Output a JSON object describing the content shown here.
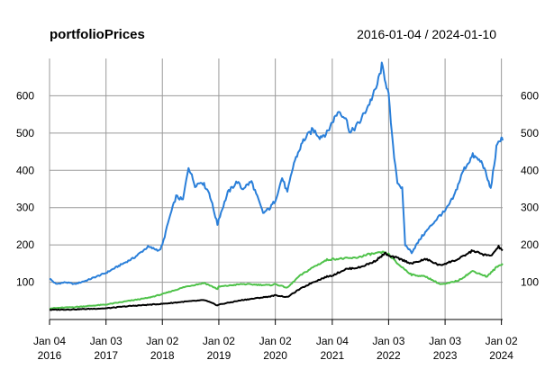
{
  "chart_data": {
    "type": "line",
    "title": "portfolioPrices",
    "date_range": "2016-01-04 / 2024-01-10",
    "x_start": "2016-01-04",
    "x_end": "2024-01-10",
    "ylim": [
      0,
      700
    ],
    "y_ticks": [
      100,
      200,
      300,
      400,
      500,
      600
    ],
    "x_ticks": [
      {
        "date": "2016-01-04",
        "label": [
          "Jan 04",
          "2016"
        ]
      },
      {
        "date": "2017-01-03",
        "label": [
          "Jan 03",
          "2017"
        ]
      },
      {
        "date": "2018-01-02",
        "label": [
          "Jan 02",
          "2018"
        ]
      },
      {
        "date": "2019-01-02",
        "label": [
          "Jan 02",
          "2019"
        ]
      },
      {
        "date": "2020-01-02",
        "label": [
          "Jan 02",
          "2020"
        ]
      },
      {
        "date": "2021-01-04",
        "label": [
          "Jan 04",
          "2021"
        ]
      },
      {
        "date": "2022-01-03",
        "label": [
          "Jan 03",
          "2022"
        ]
      },
      {
        "date": "2023-01-03",
        "label": [
          "Jan 03",
          "2023"
        ]
      },
      {
        "date": "2024-01-02",
        "label": [
          "Jan 02",
          "2024"
        ]
      }
    ],
    "grid": true,
    "series": [
      {
        "color": "#2a7fd9",
        "points": [
          [
            "2016-01-04",
            110
          ],
          [
            "2016-02-15",
            95
          ],
          [
            "2016-04-15",
            100
          ],
          [
            "2016-06-15",
            95
          ],
          [
            "2016-09-01",
            105
          ],
          [
            "2016-11-01",
            115
          ],
          [
            "2017-01-03",
            125
          ],
          [
            "2017-04-01",
            145
          ],
          [
            "2017-07-01",
            165
          ],
          [
            "2017-10-01",
            195
          ],
          [
            "2017-12-15",
            185
          ],
          [
            "2018-01-02",
            200
          ],
          [
            "2018-02-15",
            270
          ],
          [
            "2018-04-01",
            330
          ],
          [
            "2018-05-15",
            320
          ],
          [
            "2018-06-20",
            410
          ],
          [
            "2018-08-01",
            360
          ],
          [
            "2018-09-15",
            370
          ],
          [
            "2018-11-01",
            340
          ],
          [
            "2018-12-24",
            255
          ],
          [
            "2019-01-02",
            270
          ],
          [
            "2019-03-01",
            340
          ],
          [
            "2019-05-01",
            370
          ],
          [
            "2019-06-01",
            350
          ],
          [
            "2019-08-01",
            370
          ],
          [
            "2019-09-15",
            320
          ],
          [
            "2019-10-15",
            285
          ],
          [
            "2019-12-01",
            300
          ],
          [
            "2020-01-02",
            320
          ],
          [
            "2020-02-15",
            380
          ],
          [
            "2020-03-20",
            340
          ],
          [
            "2020-05-01",
            420
          ],
          [
            "2020-07-01",
            480
          ],
          [
            "2020-09-01",
            510
          ],
          [
            "2020-10-15",
            490
          ],
          [
            "2020-12-01",
            500
          ],
          [
            "2021-01-04",
            530
          ],
          [
            "2021-02-15",
            560
          ],
          [
            "2021-04-01",
            540
          ],
          [
            "2021-05-01",
            500
          ],
          [
            "2021-07-01",
            530
          ],
          [
            "2021-09-01",
            580
          ],
          [
            "2021-10-15",
            620
          ],
          [
            "2021-11-20",
            680
          ],
          [
            "2021-12-15",
            640
          ],
          [
            "2022-01-03",
            600
          ],
          [
            "2022-02-01",
            460
          ],
          [
            "2022-03-01",
            370
          ],
          [
            "2022-04-01",
            350
          ],
          [
            "2022-04-20",
            200
          ],
          [
            "2022-06-01",
            180
          ],
          [
            "2022-08-01",
            220
          ],
          [
            "2022-10-01",
            250
          ],
          [
            "2022-12-01",
            280
          ],
          [
            "2023-01-03",
            290
          ],
          [
            "2023-03-01",
            330
          ],
          [
            "2023-05-01",
            400
          ],
          [
            "2023-07-01",
            440
          ],
          [
            "2023-09-01",
            420
          ],
          [
            "2023-10-25",
            350
          ],
          [
            "2023-12-01",
            460
          ],
          [
            "2024-01-02",
            490
          ],
          [
            "2024-01-10",
            480
          ]
        ]
      },
      {
        "color": "#4fc24a",
        "points": [
          [
            "2016-01-04",
            30
          ],
          [
            "2016-06-01",
            33
          ],
          [
            "2017-01-03",
            40
          ],
          [
            "2017-06-01",
            50
          ],
          [
            "2017-10-01",
            58
          ],
          [
            "2018-01-02",
            68
          ],
          [
            "2018-06-01",
            88
          ],
          [
            "2018-10-01",
            98
          ],
          [
            "2018-12-24",
            82
          ],
          [
            "2019-01-02",
            88
          ],
          [
            "2019-06-01",
            95
          ],
          [
            "2019-12-01",
            92
          ],
          [
            "2020-01-02",
            95
          ],
          [
            "2020-03-20",
            85
          ],
          [
            "2020-06-01",
            115
          ],
          [
            "2020-09-01",
            140
          ],
          [
            "2020-12-01",
            160
          ],
          [
            "2021-01-04",
            162
          ],
          [
            "2021-06-01",
            165
          ],
          [
            "2021-09-01",
            175
          ],
          [
            "2021-12-01",
            180
          ],
          [
            "2022-01-03",
            175
          ],
          [
            "2022-03-01",
            150
          ],
          [
            "2022-06-01",
            120
          ],
          [
            "2022-09-01",
            115
          ],
          [
            "2022-12-01",
            95
          ],
          [
            "2023-01-03",
            95
          ],
          [
            "2023-04-01",
            105
          ],
          [
            "2023-07-01",
            130
          ],
          [
            "2023-10-01",
            115
          ],
          [
            "2023-12-01",
            140
          ],
          [
            "2024-01-10",
            150
          ]
        ]
      },
      {
        "color": "#000000",
        "points": [
          [
            "2016-01-04",
            26
          ],
          [
            "2016-06-01",
            27
          ],
          [
            "2017-01-03",
            30
          ],
          [
            "2017-06-01",
            36
          ],
          [
            "2018-01-02",
            42
          ],
          [
            "2018-06-01",
            48
          ],
          [
            "2018-10-01",
            52
          ],
          [
            "2018-12-24",
            38
          ],
          [
            "2019-01-02",
            40
          ],
          [
            "2019-06-01",
            52
          ],
          [
            "2019-12-01",
            62
          ],
          [
            "2020-01-02",
            65
          ],
          [
            "2020-03-20",
            60
          ],
          [
            "2020-06-01",
            80
          ],
          [
            "2020-09-01",
            100
          ],
          [
            "2020-12-01",
            115
          ],
          [
            "2021-01-04",
            118
          ],
          [
            "2021-04-01",
            135
          ],
          [
            "2021-07-01",
            140
          ],
          [
            "2021-10-01",
            155
          ],
          [
            "2021-12-15",
            178
          ],
          [
            "2022-01-03",
            170
          ],
          [
            "2022-03-01",
            165
          ],
          [
            "2022-06-01",
            150
          ],
          [
            "2022-09-01",
            162
          ],
          [
            "2022-12-01",
            145
          ],
          [
            "2023-01-03",
            150
          ],
          [
            "2023-04-01",
            162
          ],
          [
            "2023-07-01",
            185
          ],
          [
            "2023-09-01",
            175
          ],
          [
            "2023-10-25",
            170
          ],
          [
            "2023-12-15",
            195
          ],
          [
            "2024-01-10",
            185
          ]
        ]
      }
    ]
  }
}
